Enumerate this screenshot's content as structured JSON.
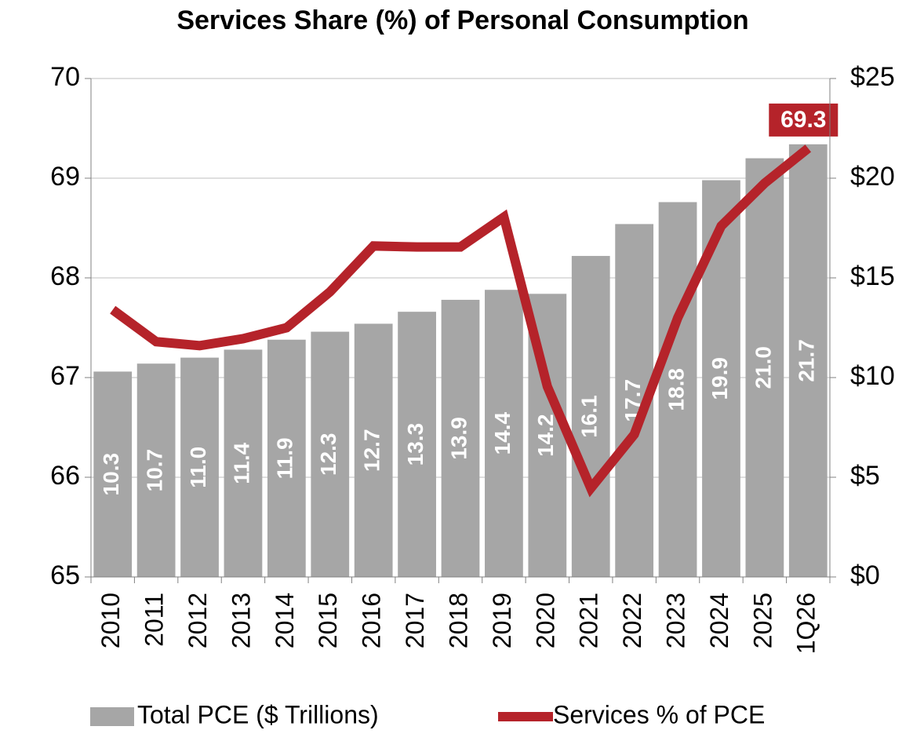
{
  "chart_data": {
    "type": "bar_line",
    "title": "Services Share (%) of Personal Consumption",
    "categories": [
      "2010",
      "2011",
      "2012",
      "2013",
      "2014",
      "2015",
      "2016",
      "2017",
      "2018",
      "2019",
      "2020",
      "2021",
      "2022",
      "2023",
      "2024",
      "2025",
      "1Q26"
    ],
    "series": [
      {
        "name": "Total PCE ($ Trillions)",
        "type": "bar",
        "axis": "y2",
        "color": "#a6a6a6",
        "values": [
          10.3,
          10.7,
          11.0,
          11.4,
          11.9,
          12.3,
          12.7,
          13.3,
          13.9,
          14.4,
          14.2,
          16.1,
          17.7,
          18.8,
          19.9,
          21.0,
          21.7
        ],
        "value_labels": [
          "10.3",
          "10.7",
          "11.0",
          "11.4",
          "11.9",
          "12.3",
          "12.7",
          "13.3",
          "13.9",
          "14.4",
          "14.2",
          "16.1",
          "17.7",
          "18.8",
          "19.9",
          "21.0",
          "21.7"
        ]
      },
      {
        "name": "Services % of PCE",
        "type": "line",
        "axis": "y",
        "color": "#b5232a",
        "values": [
          67.68,
          67.36,
          67.32,
          67.39,
          67.5,
          67.86,
          68.32,
          68.31,
          68.31,
          68.61,
          66.91,
          65.89,
          66.43,
          67.6,
          68.52,
          68.95,
          69.3
        ]
      }
    ],
    "ylim": [
      65,
      70
    ],
    "yticks": [
      65,
      66,
      67,
      68,
      69,
      70
    ],
    "y2lim": [
      0,
      25
    ],
    "y2ticks": [
      {
        "value": 0,
        "label": "$0"
      },
      {
        "value": 5,
        "label": "$5"
      },
      {
        "value": 10,
        "label": "$10"
      },
      {
        "value": 15,
        "label": "$15"
      },
      {
        "value": 20,
        "label": "$20"
      },
      {
        "value": 25,
        "label": "$25"
      }
    ],
    "grid": true,
    "legend": "bottom"
  }
}
